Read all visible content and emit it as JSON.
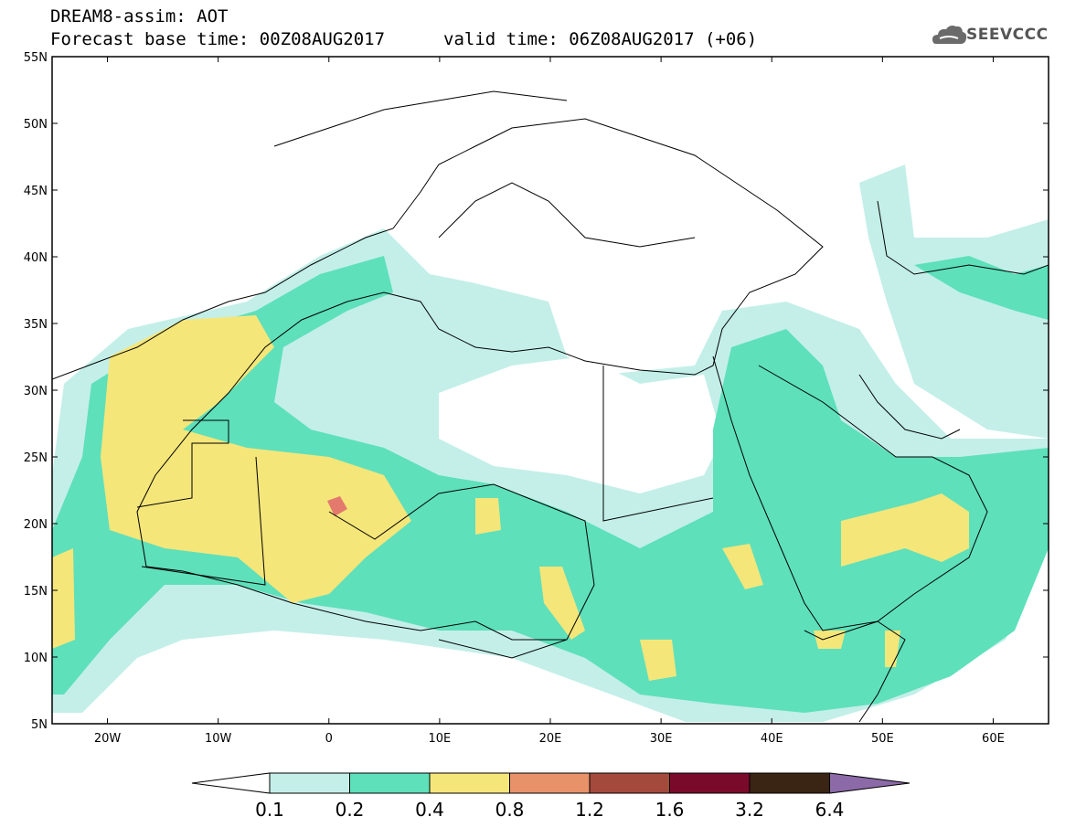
{
  "header": {
    "title": "DREAM8-assim: AOT",
    "base_time": "Forecast base time: 00Z08AUG2017",
    "valid_time": "valid time: 06Z08AUG2017 (+06)"
  },
  "logo": {
    "text": "SEEVCCC",
    "icon": "cloud-logo-icon"
  },
  "map": {
    "lat_labels": [
      "55N",
      "50N",
      "45N",
      "40N",
      "35N",
      "30N",
      "25N",
      "20N",
      "15N",
      "10N",
      "5N"
    ],
    "lon_labels": [
      "20W",
      "10W",
      "0",
      "10E",
      "20E",
      "30E",
      "40E",
      "50E",
      "60E"
    ],
    "lon_range": [
      -25,
      65
    ],
    "lat_range": [
      5,
      55
    ]
  },
  "colorbar": {
    "labels": [
      "0.1",
      "0.2",
      "0.4",
      "0.8",
      "1.2",
      "1.6",
      "3.2",
      "6.4"
    ],
    "colors": [
      "#ffffff",
      "#c4efe9",
      "#5ee0bb",
      "#f5e67a",
      "#e8926a",
      "#a44a3c",
      "#7a0a2a",
      "#3a2414",
      "#8c6aa8"
    ]
  },
  "fields": {
    "level_colors": {
      "light": "#c4efe9",
      "medium": "#5ee0bb",
      "high": "#f5e67a",
      "very_high": "#e47a6e"
    }
  }
}
